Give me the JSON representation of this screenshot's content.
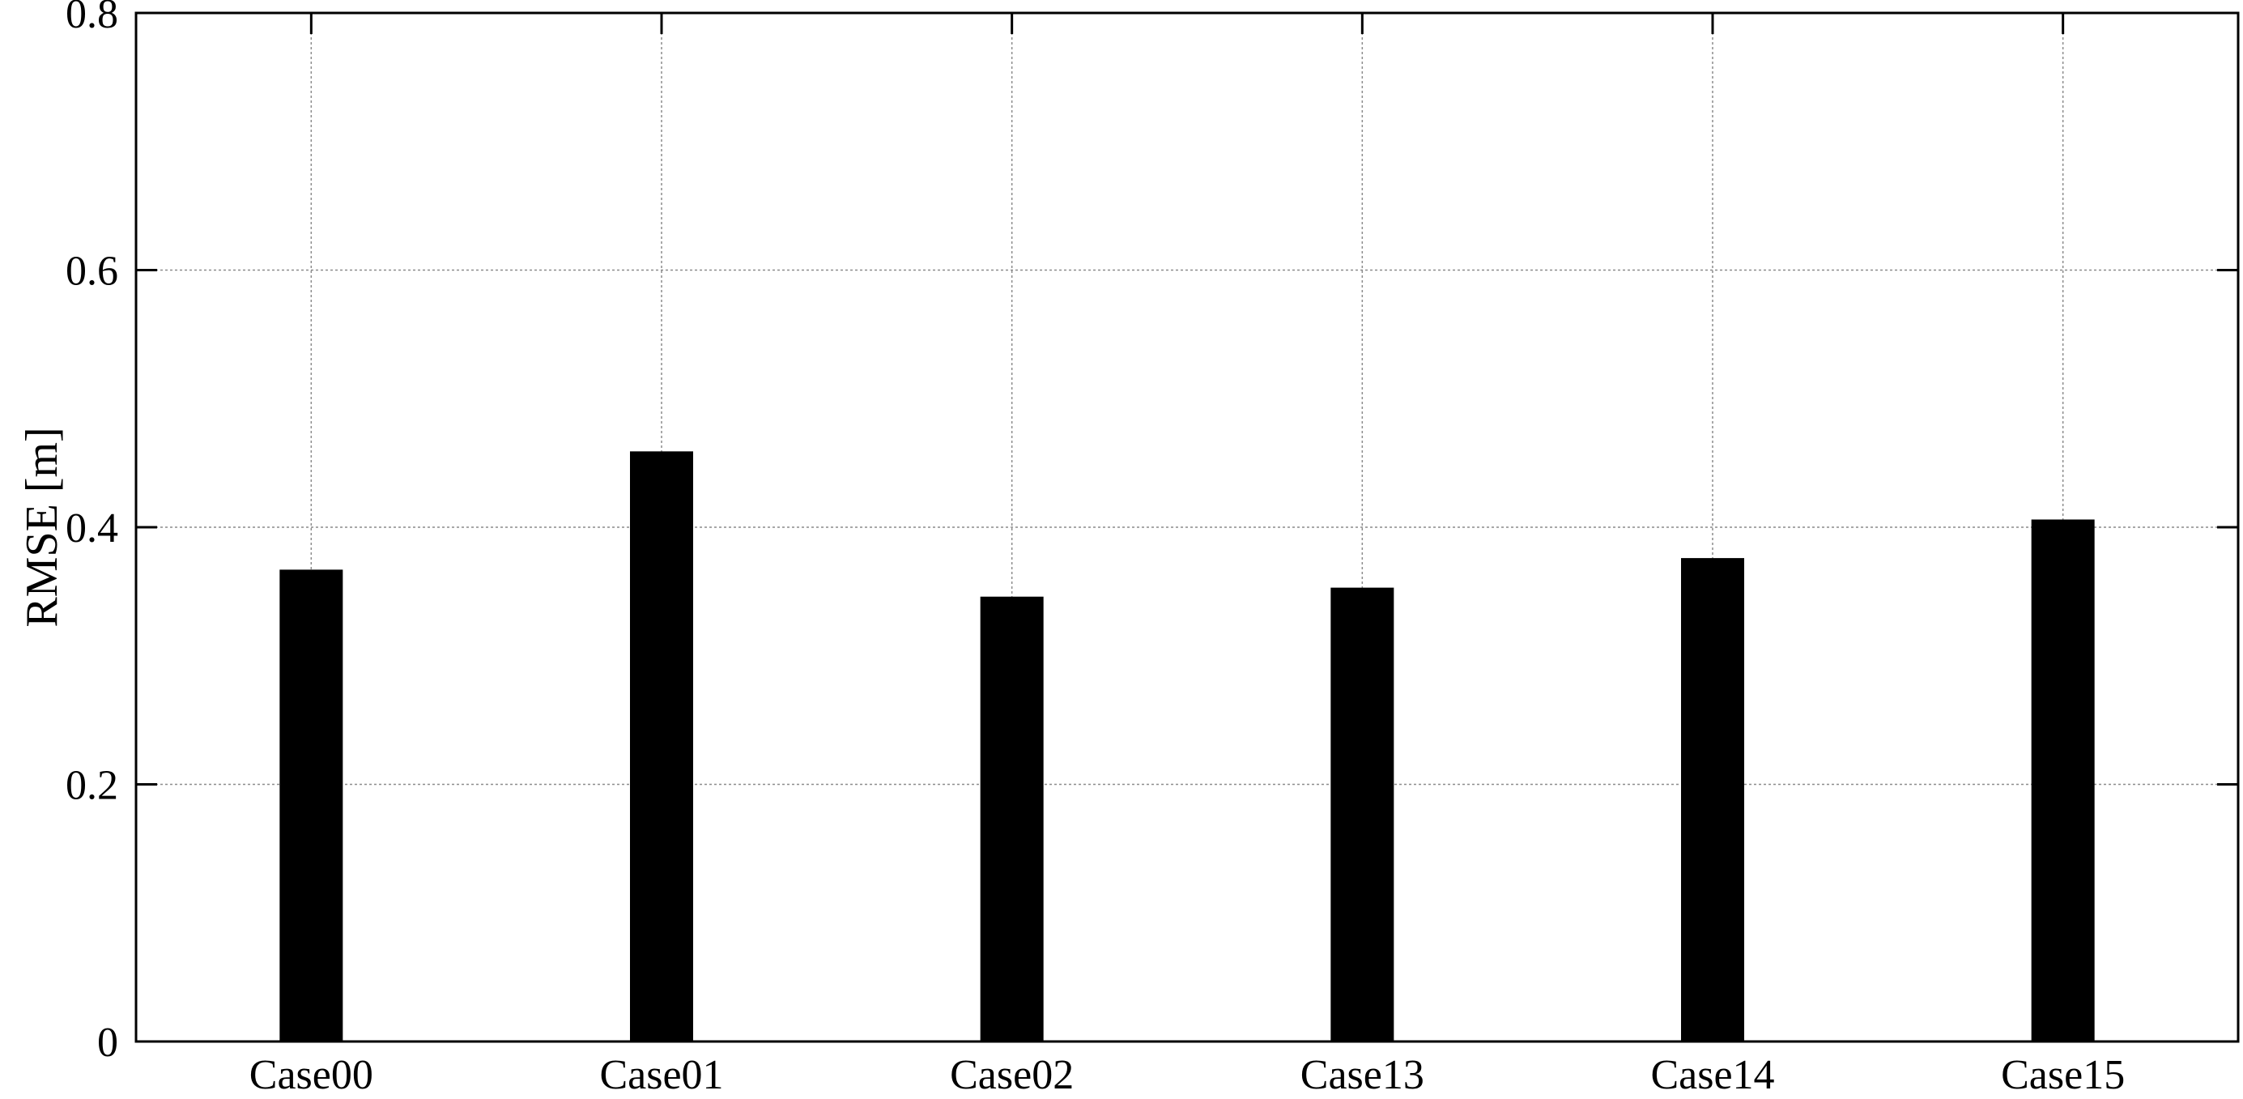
{
  "chart_data": {
    "type": "bar",
    "categories": [
      "Case00",
      "Case01",
      "Case02",
      "Case13",
      "Case14",
      "Case15"
    ],
    "values": [
      0.367,
      0.459,
      0.346,
      0.353,
      0.376,
      0.406
    ],
    "title": "",
    "xlabel": "",
    "ylabel": "RMSE [m]",
    "ylim": [
      0,
      0.8
    ],
    "yticks": [
      0,
      0.2,
      0.4,
      0.6,
      0.8
    ],
    "ytick_labels": [
      "0",
      "0.2",
      "0.4",
      "0.6",
      "0.8"
    ],
    "grid": true,
    "legend": "none",
    "bar_color": "#000000",
    "grid_color": "#8c8c8c"
  }
}
